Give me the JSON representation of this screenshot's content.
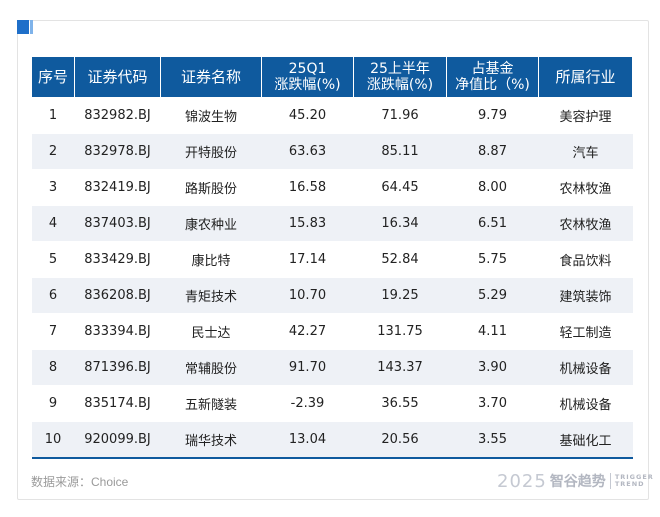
{
  "table": {
    "headers": [
      [
        "序号"
      ],
      [
        "证券代码"
      ],
      [
        "证券名称"
      ],
      [
        "25Q1",
        "涨跌幅(%)"
      ],
      [
        "25上半年",
        "涨跌幅(%)"
      ],
      [
        "占基金",
        "净值比（%)"
      ],
      [
        "所属行业"
      ]
    ],
    "rows": [
      [
        "1",
        "832982.BJ",
        "锦波生物",
        "45.20",
        "71.96",
        "9.79",
        "美容护理"
      ],
      [
        "2",
        "832978.BJ",
        "开特股份",
        "63.63",
        "85.11",
        "8.87",
        "汽车"
      ],
      [
        "3",
        "832419.BJ",
        "路斯股份",
        "16.58",
        "64.45",
        "8.00",
        "农林牧渔"
      ],
      [
        "4",
        "837403.BJ",
        "康农种业",
        "15.83",
        "16.34",
        "6.51",
        "农林牧渔"
      ],
      [
        "5",
        "833429.BJ",
        "康比特",
        "17.14",
        "52.84",
        "5.75",
        "食品饮料"
      ],
      [
        "6",
        "836208.BJ",
        "青矩技术",
        "10.70",
        "19.25",
        "5.29",
        "建筑装饰"
      ],
      [
        "7",
        "833394.BJ",
        "民士达",
        "42.27",
        "131.75",
        "4.11",
        "轻工制造"
      ],
      [
        "8",
        "871396.BJ",
        "常辅股份",
        "91.70",
        "143.37",
        "3.90",
        "机械设备"
      ],
      [
        "9",
        "835174.BJ",
        "五新隧装",
        "-2.39",
        "36.55",
        "3.70",
        "机械设备"
      ],
      [
        "10",
        "920099.BJ",
        "瑞华技术",
        "13.04",
        "20.56",
        "3.55",
        "基础化工"
      ]
    ]
  },
  "footer": {
    "source": "数据来源：Choice",
    "logo_year": "2025",
    "logo_brand": "智谷趋势",
    "logo_en_line1": "TRIGGER",
    "logo_en_line2": "TREND"
  },
  "colors": {
    "header_bg": "#0f5a9e",
    "row_alt_bg": "#eef1f6",
    "accent": "#1f6fc9"
  }
}
